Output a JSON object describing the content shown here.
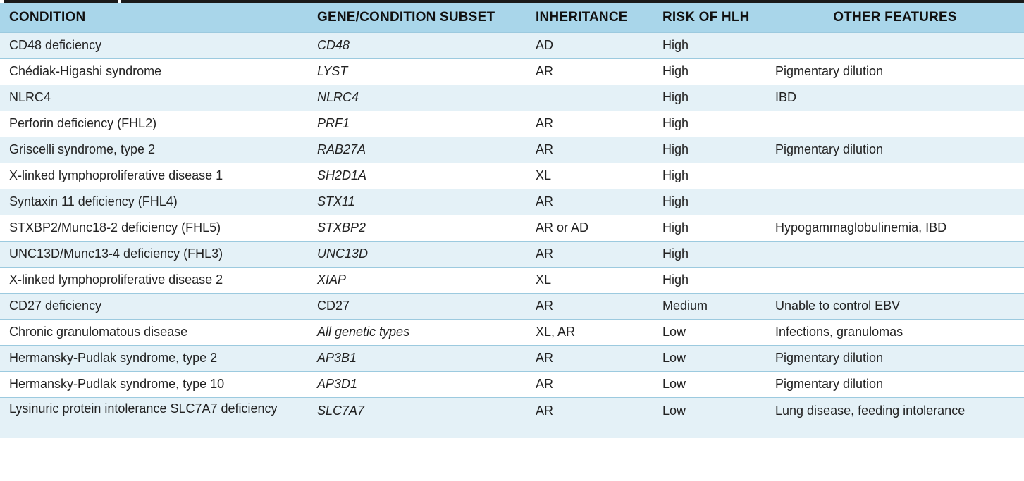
{
  "headers": {
    "condition": "CONDITION",
    "gene": "GENE/CONDITION SUBSET",
    "inheritance": "INHERITANCE",
    "risk": "RISK OF HLH",
    "features": "OTHER FEATURES"
  },
  "rows": [
    {
      "condition": "CD48 deficiency",
      "gene": "CD48",
      "inheritance": "AD",
      "risk": "High",
      "features": ""
    },
    {
      "condition": "Chédiak-Higashi syndrome",
      "gene": "LYST",
      "inheritance": "AR",
      "risk": "High",
      "features": "Pigmentary dilution"
    },
    {
      "condition": "NLRC4",
      "gene": "NLRC4",
      "inheritance": "",
      "risk": "High",
      "features": "IBD"
    },
    {
      "condition": "Perforin deficiency (FHL2)",
      "gene": "PRF1",
      "inheritance": "AR",
      "risk": "High",
      "features": ""
    },
    {
      "condition": "Griscelli syndrome, type 2",
      "gene": "RAB27A",
      "inheritance": "AR",
      "risk": "High",
      "features": "Pigmentary dilution"
    },
    {
      "condition": "X-linked lymphoproliferative disease 1",
      "gene": "SH2D1A",
      "inheritance": "XL",
      "risk": "High",
      "features": ""
    },
    {
      "condition": "Syntaxin 11 deficiency (FHL4)",
      "gene": "STX11",
      "inheritance": "AR",
      "risk": "High",
      "features": ""
    },
    {
      "condition": "STXBP2/Munc18-2 deficiency (FHL5)",
      "gene": "STXBP2",
      "inheritance": "AR or AD",
      "risk": "High",
      "features": "Hypogammaglobulinemia, IBD"
    },
    {
      "condition": "UNC13D/Munc13-4 deficiency (FHL3)",
      "gene": "UNC13D",
      "inheritance": "AR",
      "risk": "High",
      "features": ""
    },
    {
      "condition": "X-linked lymphoproliferative disease 2",
      "gene": "XIAP",
      "inheritance": "XL",
      "risk": "High",
      "features": ""
    },
    {
      "condition": "CD27 deficiency",
      "gene": "CD27",
      "inheritance": "AR",
      "risk": "Medium",
      "features": "Unable to control EBV"
    },
    {
      "condition": "Chronic granulomatous disease",
      "gene": "All genetic types",
      "inheritance": "XL, AR",
      "risk": "Low",
      "features": "Infections, granulomas"
    },
    {
      "condition": "Hermansky-Pudlak syndrome, type 2",
      "gene": "AP3B1",
      "inheritance": "AR",
      "risk": "Low",
      "features": "Pigmentary dilution"
    },
    {
      "condition": "Hermansky-Pudlak syndrome, type 10",
      "gene": "AP3D1",
      "inheritance": "AR",
      "risk": "Low",
      "features": "Pigmentary dilution"
    },
    {
      "condition": "Lysinuric protein intolerance SLC7A7 deficiency",
      "gene": "SLC7A7",
      "inheritance": "AR",
      "risk": "Low",
      "features": "Lung disease, feeding intolerance"
    }
  ],
  "colors": {
    "header_bg": "#a9d6ea",
    "row_alt_bg": "#e4f1f7",
    "row_border": "#9ccadf"
  }
}
